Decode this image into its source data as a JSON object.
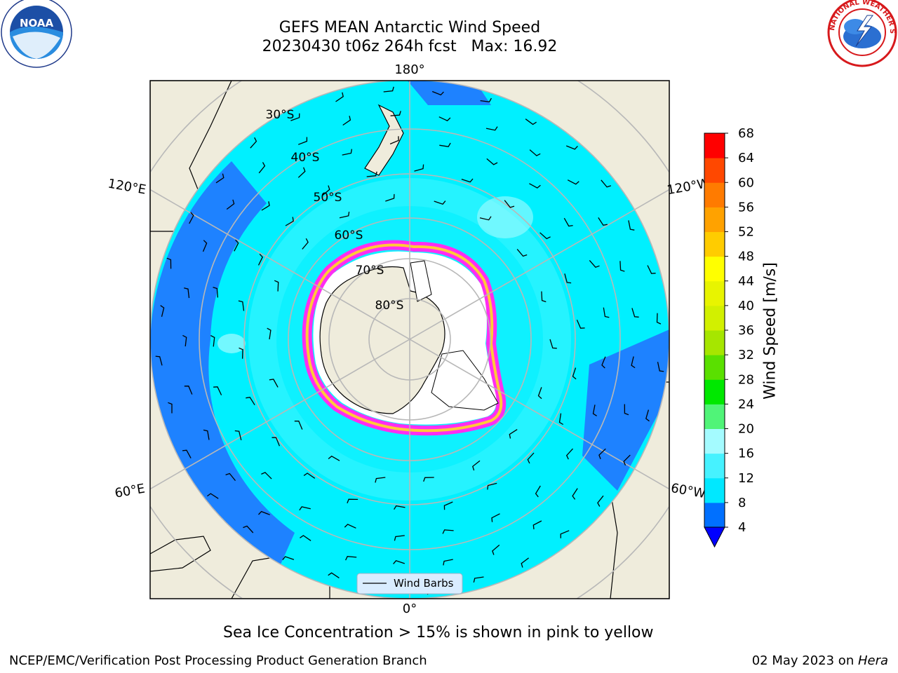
{
  "title": {
    "line1": "GEFS MEAN Antarctic Wind Speed",
    "line2": "20230430 t06z 264h fcst   Max: 16.92"
  },
  "logos": {
    "left": {
      "text": "NOAA",
      "icon": "noaa-logo"
    },
    "right": {
      "text": "NATIONAL WEATHER SERVICE",
      "icon": "nws-logo"
    }
  },
  "map": {
    "projection": "south-polar-stereographic",
    "longitude_labels": {
      "top": "180°",
      "bottom": "0°",
      "upper_left": "120°E",
      "upper_right": "120°W",
      "lower_left": "60°E",
      "lower_right": "60°W"
    },
    "latitude_labels": [
      "30°S",
      "40°S",
      "50°S",
      "60°S",
      "70°S",
      "80°S"
    ],
    "legend": {
      "label": "Wind Barbs"
    },
    "colors": {
      "land": "#efecdc",
      "wind_4_8": "#1e82ff",
      "wind_8_12": "#00f0ff",
      "wind_12_16": "#44f5ff",
      "sea_ice_low": "#ff2df2",
      "sea_ice_high": "#ffc93a",
      "ice_shelf": "#ffffff",
      "gridlines": "#b8b8b8"
    }
  },
  "colorbar": {
    "label": "Wind Speed [m/s]",
    "ticks": [
      "4",
      "8",
      "12",
      "16",
      "20",
      "24",
      "28",
      "32",
      "36",
      "40",
      "44",
      "48",
      "52",
      "56",
      "60",
      "64",
      "68"
    ],
    "colors": [
      "#0070ff",
      "#00e8ff",
      "#46f2ff",
      "#a4fbff",
      "#50f478",
      "#00e800",
      "#5ae000",
      "#a6e600",
      "#d2f000",
      "#e8f400",
      "#ffff00",
      "#ffcc00",
      "#ffa200",
      "#ff7b00",
      "#ff4800",
      "#ff0000"
    ],
    "extend_color": "#0000ff"
  },
  "subtitle": "Sea Ice Concentration > 15% is shown in pink to yellow",
  "footer": {
    "left": "NCEP/EMC/Verification Post Processing Product Generation Branch",
    "right_prefix": "02 May 2023 on ",
    "right_italic": "Hera"
  }
}
